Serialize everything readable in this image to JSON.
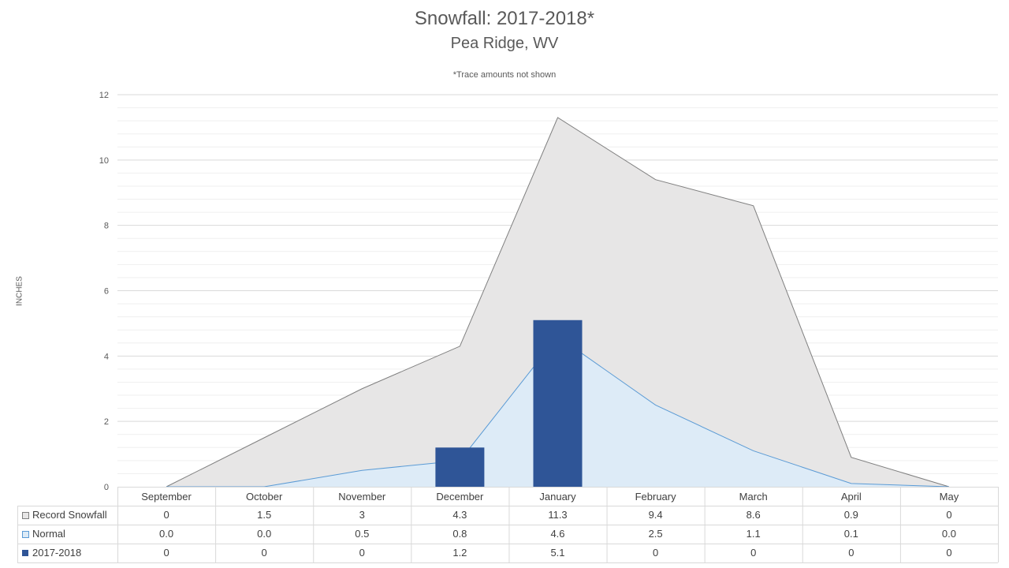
{
  "chart_data": {
    "type": "area",
    "title": "Snowfall: 2017-2018*",
    "subtitle": "Pea Ridge, WV",
    "note": "*Trace amounts not shown",
    "xlabel": "",
    "ylabel": "INCHES",
    "ylim": [
      0,
      12
    ],
    "yticks": [
      0,
      2,
      4,
      6,
      8,
      10,
      12
    ],
    "grid": true,
    "legend_position": "table-left",
    "categories": [
      "September",
      "October",
      "November",
      "December",
      "January",
      "February",
      "March",
      "April",
      "May"
    ],
    "series": [
      {
        "name": "Record Snowfall",
        "type": "area",
        "color": "#e7e6e6",
        "line_color": "#7f7f7f",
        "values": [
          0,
          1.5,
          3,
          4.3,
          11.3,
          9.4,
          8.6,
          0.9,
          0
        ],
        "labels": [
          "0",
          "1.5",
          "3",
          "4.3",
          "11.3",
          "9.4",
          "8.6",
          "0.9",
          "0"
        ]
      },
      {
        "name": "Normal",
        "type": "area",
        "color": "#ddebf7",
        "line_color": "#5b9bd5",
        "values": [
          0.0,
          0.0,
          0.5,
          0.8,
          4.6,
          2.5,
          1.1,
          0.1,
          0.0
        ],
        "labels": [
          "0.0",
          "0.0",
          "0.5",
          "0.8",
          "4.6",
          "2.5",
          "1.1",
          "0.1",
          "0.0"
        ]
      },
      {
        "name": "2017-2018",
        "type": "bar",
        "color": "#2f5597",
        "values": [
          0,
          0,
          0,
          1.2,
          5.1,
          0,
          0,
          0,
          0
        ],
        "labels": [
          "0",
          "0",
          "0",
          "1.2",
          "5.1",
          "0",
          "0",
          "0",
          "0"
        ]
      }
    ]
  }
}
